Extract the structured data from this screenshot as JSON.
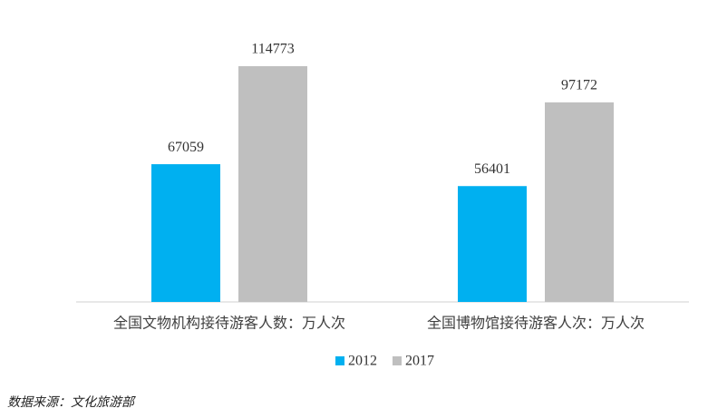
{
  "chart_data": {
    "type": "bar",
    "categories": [
      "全国文物机构接待游客人数：万人次",
      "全国博物馆接待游客人次：万人次"
    ],
    "series": [
      {
        "name": "2012",
        "color": "#00b0f0",
        "values": [
          67059,
          56401
        ]
      },
      {
        "name": "2017",
        "color": "#bfbfbf",
        "values": [
          114773,
          97172
        ]
      }
    ],
    "source": "数据来源：文化旅游部"
  }
}
